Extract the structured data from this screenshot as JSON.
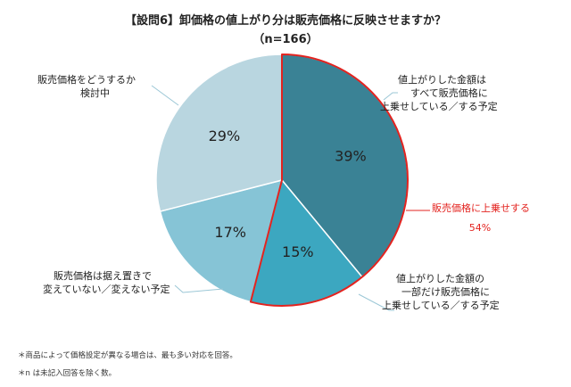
{
  "title": "【設問6】卸価格の値上がり分は販売価格に反映させますか？",
  "subtitle": "（n=166）",
  "chart_data": {
    "type": "pie",
    "title": "【設問6】卸価格の値上がり分は販売価格に反映させますか？",
    "subtitle": "（n=166）",
    "slices": [
      {
        "label": "値上がりした金額はすべて販売価格に上乗せしている／する予定",
        "value": 39,
        "value_label": "39%",
        "color": "#3a8295"
      },
      {
        "label": "値上がりした金額の一部だけ販売価格に上乗せしている／する予定",
        "value": 15,
        "value_label": "15%",
        "color": "#3ca7c0"
      },
      {
        "label": "販売価格は据え置きで変えていない／変えない予定",
        "value": 17,
        "value_label": "17%",
        "color": "#86c4d6"
      },
      {
        "label": "販売価格をどうするか検討中",
        "value": 29,
        "value_label": "29%",
        "color": "#b9d6e0"
      }
    ],
    "group_annotation": {
      "label": "販売価格に上乗せする",
      "value": 54,
      "value_label": "54%",
      "color": "#e3231f"
    }
  },
  "labels": {
    "all": [
      "値上がりした金額は",
      "すべて販売価格に",
      "上乗せしている／する予定"
    ],
    "part": [
      "値上がりした金額の",
      "一部だけ販売価格に",
      "上乗せしている／する予定"
    ],
    "keep": [
      "販売価格は据え置きで",
      "変えていない／変えない予定"
    ],
    "consider": [
      "販売価格をどうするか",
      "検討中"
    ],
    "group": "販売価格に上乗せする",
    "group_value": "54%"
  },
  "notes": [
    "＊商品によって価格設定が異なる場合は、最も多い対応を回答。",
    "＊n は未記入回答を除く数。"
  ]
}
